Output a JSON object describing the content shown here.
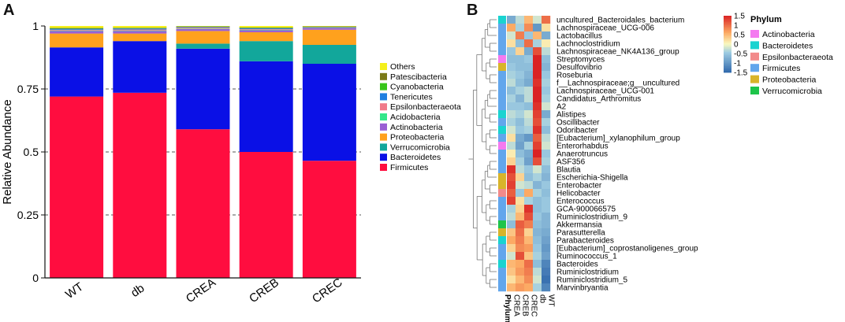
{
  "panels": {
    "a": "A",
    "b": "B"
  },
  "chart_data": [
    {
      "type": "bar",
      "stacked": true,
      "title": "",
      "xlabel": "",
      "ylabel": "Relative Abundance",
      "ylim": [
        0,
        1
      ],
      "yticks": [
        "0",
        "0.25",
        "0.5",
        "0.75",
        "1"
      ],
      "ytick_values": [
        0,
        0.25,
        0.5,
        0.75,
        1
      ],
      "grid": "dashed horizontal lines at 0.25, 0.5, 0.75",
      "categories": [
        "WT",
        "db",
        "CREA",
        "CREB",
        "CREC"
      ],
      "legend_position": "right",
      "legend_order": [
        "Others",
        "Patescibacteria",
        "Cyanobacteria",
        "Tenericutes",
        "Epsilonbacteraeota",
        "Acidobacteria",
        "Actinobacteria",
        "Proteobacteria",
        "Verrucomicrobia",
        "Bacteroidetes",
        "Firmicutes"
      ],
      "series": [
        {
          "name": "Firmicutes",
          "color": "#ff0d3f",
          "values": [
            0.72,
            0.735,
            0.59,
            0.5,
            0.465
          ]
        },
        {
          "name": "Bacteroidetes",
          "color": "#0a10e6",
          "values": [
            0.195,
            0.205,
            0.32,
            0.36,
            0.385
          ]
        },
        {
          "name": "Verrucomicrobia",
          "color": "#12a79b",
          "values": [
            0.0,
            0.0,
            0.02,
            0.08,
            0.075
          ]
        },
        {
          "name": "Proteobacteria",
          "color": "#ffa11d",
          "values": [
            0.055,
            0.03,
            0.05,
            0.035,
            0.06
          ]
        },
        {
          "name": "Actinobacteria",
          "color": "#9a5fd4",
          "values": [
            0.01,
            0.01,
            0.008,
            0.008,
            0.007
          ]
        },
        {
          "name": "Acidobacteria",
          "color": "#34e78a",
          "values": [
            0.002,
            0.002,
            0.002,
            0.002,
            0.002
          ]
        },
        {
          "name": "Epsilonbacteraeota",
          "color": "#f07a8a",
          "values": [
            0.003,
            0.004,
            0.004,
            0.003,
            0.001
          ]
        },
        {
          "name": "Tenericutes",
          "color": "#1f7fe0",
          "values": [
            0.004,
            0.004,
            0.003,
            0.004,
            0.002
          ]
        },
        {
          "name": "Cyanobacteria",
          "color": "#38c51a",
          "values": [
            0.002,
            0.002,
            0.001,
            0.001,
            0.001
          ]
        },
        {
          "name": "Patescibacteria",
          "color": "#7b7a17",
          "values": [
            0.001,
            0.001,
            0.001,
            0.001,
            0.001
          ]
        },
        {
          "name": "Others",
          "color": "#f4f01c",
          "values": [
            0.008,
            0.007,
            0.001,
            0.006,
            0.001
          ]
        }
      ]
    },
    {
      "type": "heatmap",
      "columns": [
        "CREA",
        "CREB",
        "CREC",
        "db",
        "WT"
      ],
      "annotation_label": "Phylum",
      "color_scale": {
        "min": -1.5,
        "max": 1.5,
        "ticks": [
          "1.5",
          "1",
          "0.5",
          "0",
          "-0.5",
          "-1",
          "-1.5"
        ],
        "tick_values": [
          1.5,
          1,
          0.5,
          0,
          -0.5,
          -1,
          -1.5
        ]
      },
      "phylum_legend_title": "Phylum",
      "phyla": [
        {
          "name": "Actinobacteria",
          "color": "#f47af0"
        },
        {
          "name": "Bacteroidetes",
          "color": "#1ad3d0"
        },
        {
          "name": "Epsilonbacteraeota",
          "color": "#f28a8a"
        },
        {
          "name": "Firmicutes",
          "color": "#62a6ec"
        },
        {
          "name": "Proteobacteria",
          "color": "#d8b42a"
        },
        {
          "name": "Verrucomicrobia",
          "color": "#1ec44a"
        }
      ],
      "rows": [
        {
          "name": "uncultured_Bacteroidales_bacterium",
          "phylum": "Bacteroidetes",
          "values": [
            -0.8,
            -0.3,
            0.5,
            -0.2,
            1.0
          ]
        },
        {
          "name": "Lachnospiraceae_UCG-006",
          "phylum": "Firmicutes",
          "values": [
            0.6,
            -0.4,
            0.8,
            -1.0,
            0.2
          ]
        },
        {
          "name": "Lactobacillus",
          "phylum": "Firmicutes",
          "values": [
            -0.2,
            0.9,
            -0.5,
            0.5,
            -0.8
          ]
        },
        {
          "name": "Lachnoclostridium",
          "phylum": "Firmicutes",
          "values": [
            0.2,
            -0.6,
            1.0,
            -0.4,
            0.1
          ]
        },
        {
          "name": "Lachnospiraceae_NK4A136_group",
          "phylum": "Firmicutes",
          "values": [
            -0.5,
            0.3,
            -0.8,
            1.2,
            -0.3
          ]
        },
        {
          "name": "Streptomyces",
          "phylum": "Actinobacteria",
          "values": [
            -0.6,
            -0.6,
            -0.5,
            1.5,
            -0.6
          ]
        },
        {
          "name": "Desulfovibrio",
          "phylum": "Proteobacteria",
          "values": [
            -0.5,
            -0.6,
            -0.6,
            1.5,
            -0.7
          ]
        },
        {
          "name": "Roseburia",
          "phylum": "Firmicutes",
          "values": [
            -0.4,
            -0.5,
            -0.7,
            1.5,
            -0.5
          ]
        },
        {
          "name": "f__Lachnospiraceae;g__uncultured",
          "phylum": "Firmicutes",
          "values": [
            -0.3,
            -0.6,
            -0.8,
            1.4,
            -0.4
          ]
        },
        {
          "name": "Lachnospiraceae_UCG-001",
          "phylum": "Firmicutes",
          "values": [
            -0.6,
            -0.4,
            -0.3,
            1.5,
            -0.5
          ]
        },
        {
          "name": "Candidatus_Arthromitus",
          "phylum": "Firmicutes",
          "values": [
            -0.4,
            -0.7,
            -0.3,
            1.5,
            -0.4
          ]
        },
        {
          "name": "A2",
          "phylum": "Firmicutes",
          "values": [
            -0.5,
            -0.5,
            -0.6,
            1.4,
            -0.2
          ]
        },
        {
          "name": "Alistipes",
          "phylum": "Bacteroidetes",
          "values": [
            -0.3,
            -0.4,
            -0.2,
            1.3,
            -0.8
          ]
        },
        {
          "name": "Oscillibacter",
          "phylum": "Firmicutes",
          "values": [
            -0.4,
            -0.6,
            -0.3,
            1.2,
            -0.4
          ]
        },
        {
          "name": "Odoribacter",
          "phylum": "Bacteroidetes",
          "values": [
            -0.2,
            -0.5,
            -0.4,
            1.4,
            -0.6
          ]
        },
        {
          "name": "[Eubacterium]_xylanophilum_group",
          "phylum": "Firmicutes",
          "values": [
            0.2,
            -0.8,
            -1.0,
            1.1,
            -0.3
          ]
        },
        {
          "name": "Enterorhabdus",
          "phylum": "Actinobacteria",
          "values": [
            -0.3,
            -0.9,
            -0.4,
            1.3,
            -0.2
          ]
        },
        {
          "name": "Anaerotruncus",
          "phylum": "Firmicutes",
          "values": [
            0.1,
            -0.6,
            -0.8,
            1.5,
            -0.5
          ]
        },
        {
          "name": "ASF356",
          "phylum": "Firmicutes",
          "values": [
            0.3,
            -0.4,
            -0.9,
            1.2,
            -0.4
          ]
        },
        {
          "name": "Blautia",
          "phylum": "Firmicutes",
          "values": [
            1.4,
            -0.3,
            -0.5,
            -0.2,
            -0.6
          ]
        },
        {
          "name": "Escherichia-Shigella",
          "phylum": "Proteobacteria",
          "values": [
            1.2,
            0.3,
            -0.6,
            -0.4,
            -0.7
          ]
        },
        {
          "name": "Enterobacter",
          "phylum": "Proteobacteria",
          "values": [
            1.3,
            -0.2,
            -0.3,
            -0.7,
            -0.5
          ]
        },
        {
          "name": "Helicobacter",
          "phylum": "Epsilonbacteraeota",
          "values": [
            1.1,
            -0.5,
            0.6,
            -0.4,
            -0.6
          ]
        },
        {
          "name": "Enterococcus",
          "phylum": "Firmicutes",
          "values": [
            1.3,
            0.2,
            -0.4,
            -0.6,
            -0.5
          ]
        },
        {
          "name": "GCA-900066575",
          "phylum": "Firmicutes",
          "values": [
            -0.4,
            0.3,
            1.4,
            -0.6,
            -0.5
          ]
        },
        {
          "name": "Ruminiclostridium_9",
          "phylum": "Firmicutes",
          "values": [
            -0.3,
            0.5,
            1.2,
            -0.5,
            -0.7
          ]
        },
        {
          "name": "Akkermansia",
          "phylum": "Verrucomicrobia",
          "values": [
            -0.6,
            1.1,
            0.9,
            -0.6,
            -0.7
          ]
        },
        {
          "name": "Parasutterella",
          "phylum": "Proteobacteria",
          "values": [
            0.4,
            1.0,
            0.3,
            -0.7,
            -0.8
          ]
        },
        {
          "name": "Parabacteroides",
          "phylum": "Bacteroidetes",
          "values": [
            0.6,
            0.9,
            0.5,
            -0.6,
            -0.9
          ]
        },
        {
          "name": "[Eubacterium]_coprostanoligenes_group",
          "phylum": "Firmicutes",
          "values": [
            0.3,
            0.8,
            0.7,
            -0.5,
            -1.0
          ]
        },
        {
          "name": "Ruminococcus_1",
          "phylum": "Firmicutes",
          "values": [
            -0.2,
            1.2,
            0.4,
            -0.4,
            -0.9
          ]
        },
        {
          "name": "Bacteroides",
          "phylum": "Bacteroidetes",
          "values": [
            0.5,
            0.6,
            1.0,
            -0.6,
            -1.2
          ]
        },
        {
          "name": "Ruminiclostridium",
          "phylum": "Firmicutes",
          "values": [
            0.4,
            0.7,
            0.9,
            -0.3,
            -1.3
          ]
        },
        {
          "name": "Ruminiclostridium_5",
          "phylum": "Firmicutes",
          "values": [
            0.2,
            0.5,
            0.8,
            -0.2,
            -1.4
          ]
        },
        {
          "name": "Marvinbryantia",
          "phylum": "Firmicutes",
          "values": [
            0.5,
            0.7,
            0.6,
            -0.4,
            -1.2
          ]
        }
      ]
    }
  ]
}
